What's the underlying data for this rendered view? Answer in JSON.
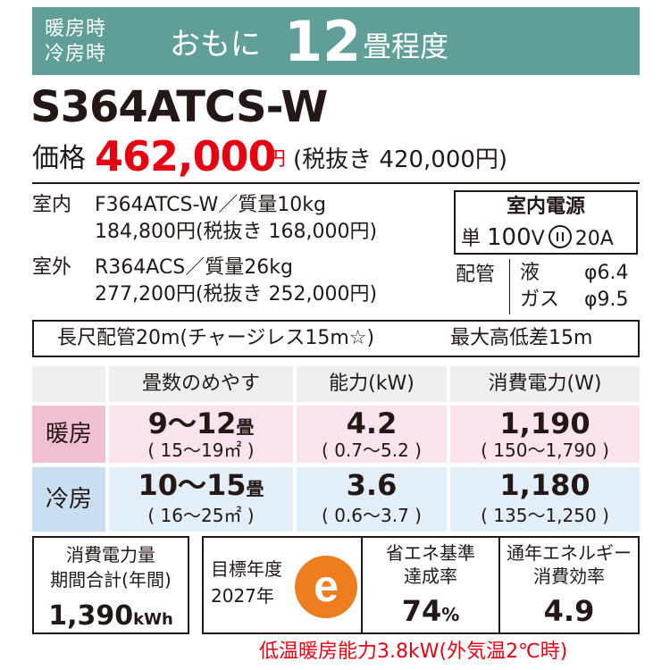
{
  "banner": {
    "heating_label": "暖房時",
    "cooling_label": "冷房時",
    "prefix": "おもに",
    "size": "12",
    "suffix": "畳程度",
    "bg_color": "#5f9f98"
  },
  "model": "S364ATCS-W",
  "price": {
    "label": "価格",
    "value": "462,000",
    "unit": "円",
    "tax_note": "(税抜き 420,000円)",
    "accent_color": "#e50012"
  },
  "indoor": {
    "label": "室内",
    "line1": "F364ATCS-W／質量10kg",
    "line2": "184,800円(税抜き 168,000円)"
  },
  "outdoor": {
    "label": "室外",
    "line1": "R364ACS／質量26kg",
    "line2": "277,200円(税抜き 252,000円)"
  },
  "power": {
    "title": "室内電源",
    "phase": "単",
    "voltage": "100",
    "voltage_unit": "V",
    "plug_icon": "plug-icon",
    "amp": "20A"
  },
  "piping": {
    "label": "配管",
    "liquid_label": "液",
    "liquid_value": "φ6.4",
    "gas_label": "ガス",
    "gas_value": "φ9.5"
  },
  "long_pipe": {
    "text1": "長尺配管20m(チャージレス15m☆)",
    "text2": "最大高低差15m"
  },
  "table": {
    "headers": [
      "畳数のめやす",
      "能力(kW)",
      "消費電力(W)"
    ],
    "rows": [
      {
        "label": "暖房",
        "area_main": "9～12",
        "area_unit": "畳",
        "area_sub": "( 15～19㎡ )",
        "capacity_main": "4.2",
        "capacity_sub": "( 0.7～5.2 )",
        "power_main": "1,190",
        "power_sub": "( 150～1,790 )"
      },
      {
        "label": "冷房",
        "area_main": "10～15",
        "area_unit": "畳",
        "area_sub": "( 16～25㎡ )",
        "capacity_main": "3.6",
        "capacity_sub": "( 0.6～3.7 )",
        "power_main": "1,180",
        "power_sub": "( 135～1,250 )"
      }
    ]
  },
  "energy": {
    "label1": "消費電力量",
    "label2": "期間合計(年間)",
    "value": "1,390",
    "unit": "kWh"
  },
  "target": {
    "line1": "目標年度",
    "line2": "2027年",
    "mark": "e",
    "mark_color": "#ee7d1f"
  },
  "achievement": {
    "line1": "省エネ基準",
    "line2": "達成率",
    "value": "74",
    "unit": "%"
  },
  "apf": {
    "line1": "通年エネルギー",
    "line2": "消費効率",
    "value": "4.9"
  },
  "footnote": "低温暖房能力3.8kW(外気温2℃時)"
}
